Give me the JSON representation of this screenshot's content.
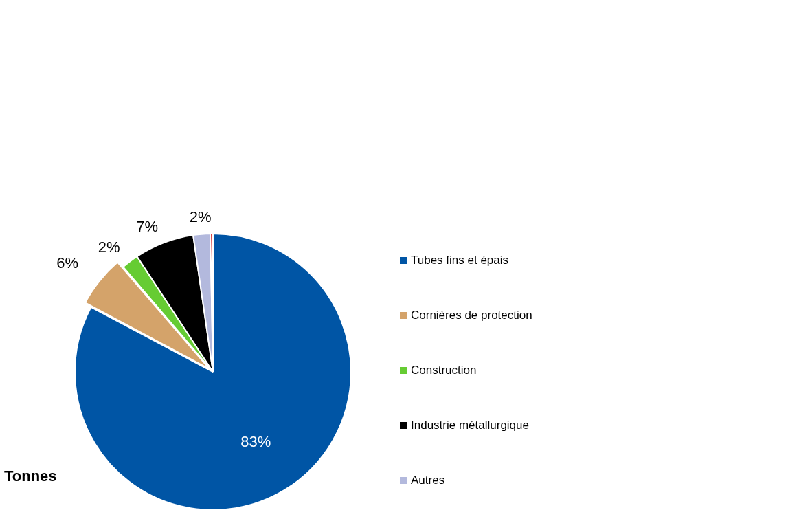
{
  "chart_data": {
    "type": "pie",
    "title": "Tonnes",
    "categories": [
      "Tubes fins et épais",
      "Cornières de protection",
      "Construction",
      "Industrie métallurgique",
      "Autres",
      null
    ],
    "values": [
      83,
      6,
      2,
      7,
      2,
      0.3
    ],
    "value_labels": [
      "83%",
      "6%",
      "2%",
      "7%",
      "2%",
      null
    ],
    "colors": [
      "#0055a5",
      "#d4a36a",
      "#66cc33",
      "#000000",
      "#b3b9dd",
      "#cc0000"
    ],
    "data_labels": true,
    "legend": "right"
  }
}
